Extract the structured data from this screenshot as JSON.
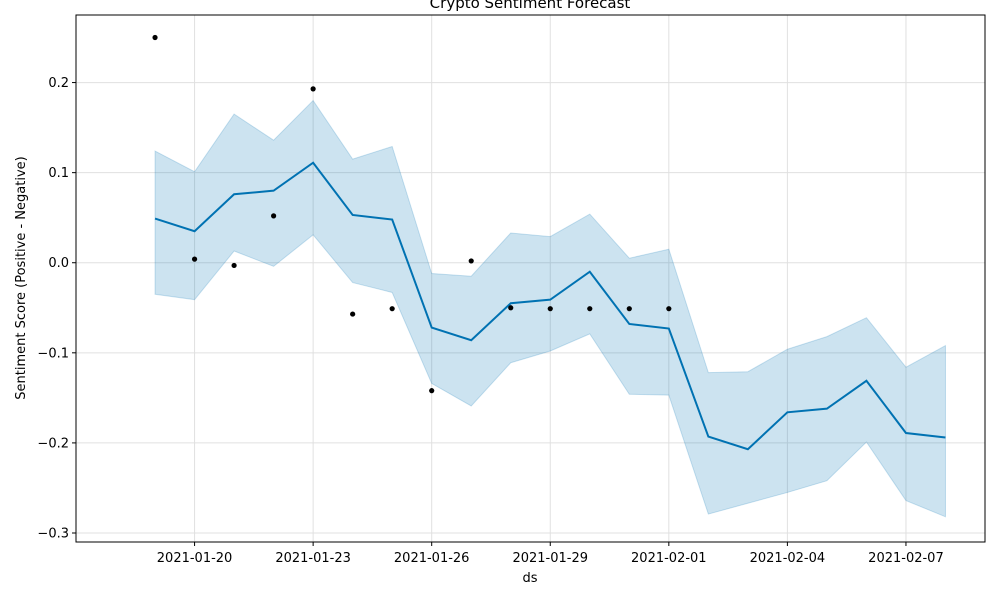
{
  "chart_data": {
    "type": "line",
    "title": "Crypto Sentiment Forecast",
    "xlabel": "ds",
    "ylabel": "Sentiment Score (Positive - Negative)",
    "grid": true,
    "xlim": [
      "2021-01-17",
      "2021-02-09"
    ],
    "ylim": [
      -0.31,
      0.275
    ],
    "x_ticks": [
      "2021-01-20",
      "2021-01-23",
      "2021-01-26",
      "2021-01-29",
      "2021-02-01",
      "2021-02-04",
      "2021-02-07"
    ],
    "y_ticks": [
      -0.3,
      -0.2,
      -0.1,
      0.0,
      0.1,
      0.2
    ],
    "y_tick_labels": [
      "−0.3",
      "−0.2",
      "−0.1",
      "0.0",
      "0.1",
      "0.2"
    ],
    "colors": {
      "forecast_line": "#0072B2",
      "interval_fill": "#0072B2",
      "observed_points": "#000000",
      "grid": "#e0e0e0"
    },
    "series": [
      {
        "kind": "observed",
        "x": [
          "2021-01-19",
          "2021-01-20",
          "2021-01-21",
          "2021-01-22",
          "2021-01-23",
          "2021-01-24",
          "2021-01-25",
          "2021-01-26",
          "2021-01-27",
          "2021-01-28",
          "2021-01-29",
          "2021-01-30",
          "2021-01-31",
          "2021-02-01"
        ],
        "y": [
          0.25,
          0.004,
          -0.003,
          0.052,
          0.193,
          -0.057,
          -0.051,
          -0.142,
          0.002,
          -0.05,
          -0.051,
          -0.051,
          -0.051,
          -0.051
        ]
      },
      {
        "kind": "forecast",
        "x": [
          "2021-01-19",
          "2021-01-20",
          "2021-01-21",
          "2021-01-22",
          "2021-01-23",
          "2021-01-24",
          "2021-01-25",
          "2021-01-26",
          "2021-01-27",
          "2021-01-28",
          "2021-01-29",
          "2021-01-30",
          "2021-01-31",
          "2021-02-01",
          "2021-02-02",
          "2021-02-03",
          "2021-02-04",
          "2021-02-05",
          "2021-02-06",
          "2021-02-07",
          "2021-02-08"
        ],
        "y": [
          0.049,
          0.035,
          0.076,
          0.08,
          0.111,
          0.053,
          0.048,
          -0.072,
          -0.086,
          -0.045,
          -0.041,
          -0.01,
          -0.068,
          -0.073,
          -0.193,
          -0.207,
          -0.166,
          -0.162,
          -0.131,
          -0.189,
          -0.194
        ],
        "lower": [
          -0.035,
          -0.041,
          0.013,
          -0.004,
          0.031,
          -0.022,
          -0.033,
          -0.134,
          -0.159,
          -0.111,
          -0.098,
          -0.079,
          -0.146,
          -0.147,
          -0.279,
          -0.267,
          -0.255,
          -0.242,
          -0.199,
          -0.264,
          -0.282
        ],
        "upper": [
          0.124,
          0.101,
          0.165,
          0.136,
          0.18,
          0.115,
          0.129,
          -0.012,
          -0.015,
          0.033,
          0.029,
          0.054,
          0.005,
          0.015,
          -0.122,
          -0.121,
          -0.096,
          -0.082,
          -0.061,
          -0.116,
          -0.092
        ]
      }
    ]
  }
}
